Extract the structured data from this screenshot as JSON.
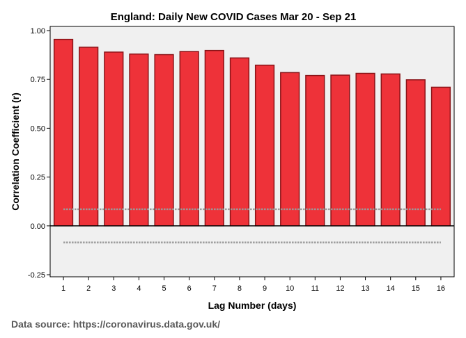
{
  "chart_data": {
    "type": "bar",
    "title": "England: Daily New COVID Cases Mar 20 - Sep 21",
    "xlabel": "Lag Number (days)",
    "ylabel": "Correlation Coefficient (r)",
    "ylim": [
      -0.25,
      1.0
    ],
    "yticks": [
      "1.00",
      "0.75",
      "0.50",
      "0.25",
      "0.00",
      "-0.25"
    ],
    "categories": [
      "1",
      "2",
      "3",
      "4",
      "5",
      "6",
      "7",
      "8",
      "9",
      "10",
      "11",
      "12",
      "13",
      "14",
      "15",
      "16"
    ],
    "values": [
      0.955,
      0.915,
      0.89,
      0.88,
      0.877,
      0.893,
      0.898,
      0.86,
      0.823,
      0.785,
      0.77,
      0.772,
      0.781,
      0.778,
      0.748,
      0.71
    ],
    "confidence_limit": 0.085,
    "bar_color": "#ee3239",
    "bar_edge_color": "#8a1418",
    "plot_background": "#f0f0f0"
  },
  "source_note": "Data source: https://coronavirus.data.gov.uk/"
}
